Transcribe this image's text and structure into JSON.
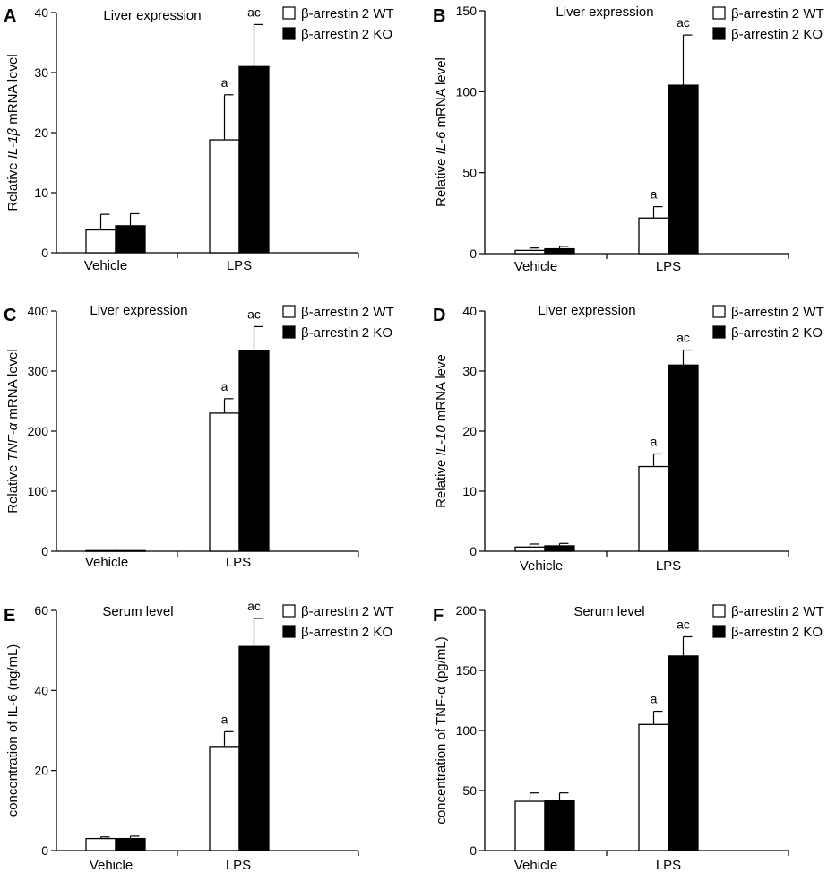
{
  "legend": {
    "wt": "β-arrestin 2 WT",
    "ko": "β-arrestin 2 KO"
  },
  "colors": {
    "wt_fill": "#ffffff",
    "ko_fill": "#000000",
    "axis": "#000000"
  },
  "chart_data": [
    {
      "panel": "A",
      "type": "bar",
      "title": "Liver expression",
      "ylabel": {
        "pre": "Relative ",
        "italic": "IL-1β",
        "post": " mRNA level"
      },
      "categories": [
        "Vehicle",
        "LPS"
      ],
      "ylim": [
        0,
        40
      ],
      "yticks": [
        0,
        10,
        20,
        30,
        40
      ],
      "series": [
        {
          "name": "β-arrestin 2 WT",
          "values": [
            3.8,
            18.8
          ],
          "errors": [
            2.6,
            7.5
          ],
          "labels": [
            "",
            "a"
          ]
        },
        {
          "name": "β-arrestin 2 KO",
          "values": [
            4.5,
            31.0
          ],
          "errors": [
            2.0,
            7.0
          ],
          "labels": [
            "",
            "ac"
          ]
        }
      ]
    },
    {
      "panel": "B",
      "type": "bar",
      "title": "Liver expression",
      "ylabel": {
        "pre": "Relative ",
        "italic": "IL-6",
        "post": " mRNA level"
      },
      "categories": [
        "Vehicle",
        "LPS"
      ],
      "ylim": [
        0,
        150
      ],
      "yticks": [
        0,
        50,
        100,
        150
      ],
      "series": [
        {
          "name": "β-arrestin 2 WT",
          "values": [
            2,
            22
          ],
          "errors": [
            1.5,
            7
          ],
          "labels": [
            "",
            "a"
          ]
        },
        {
          "name": "β-arrestin 2 KO",
          "values": [
            3,
            104
          ],
          "errors": [
            1.5,
            31
          ],
          "labels": [
            "",
            "ac"
          ]
        }
      ]
    },
    {
      "panel": "C",
      "type": "bar",
      "title": "Liver expression",
      "ylabel": {
        "pre": "Relative ",
        "italic": "TNF-α",
        "post": " mRNA level"
      },
      "categories": [
        "Vehicle",
        "LPS"
      ],
      "ylim": [
        0,
        400
      ],
      "yticks": [
        0,
        100,
        200,
        300,
        400
      ],
      "series": [
        {
          "name": "β-arrestin 2 WT",
          "values": [
            1,
            230
          ],
          "errors": [
            0,
            24
          ],
          "labels": [
            "",
            "a"
          ]
        },
        {
          "name": "β-arrestin 2 KO",
          "values": [
            1,
            334
          ],
          "errors": [
            0,
            40
          ],
          "labels": [
            "",
            "ac"
          ]
        }
      ]
    },
    {
      "panel": "D",
      "type": "bar",
      "title": "Liver expression",
      "ylabel": {
        "pre": "Relative ",
        "italic": "IL-10",
        "post": " mRNA leve"
      },
      "categories": [
        "Vehicle",
        "LPS"
      ],
      "ylim": [
        0,
        40
      ],
      "yticks": [
        0,
        10,
        20,
        30,
        40
      ],
      "series": [
        {
          "name": "β-arrestin 2 WT",
          "values": [
            0.7,
            14.1
          ],
          "errors": [
            0.5,
            2.1
          ],
          "labels": [
            "",
            "a"
          ]
        },
        {
          "name": "β-arrestin 2 KO",
          "values": [
            0.9,
            31.0
          ],
          "errors": [
            0.4,
            2.5
          ],
          "labels": [
            "",
            "ac"
          ]
        }
      ]
    },
    {
      "panel": "E",
      "type": "bar",
      "title": "Serum level",
      "ylabel": {
        "pre": "concentration of IL-6 (ng/mL)",
        "italic": "",
        "post": ""
      },
      "categories": [
        "Vehicle",
        "LPS"
      ],
      "ylim": [
        0,
        60
      ],
      "yticks": [
        0,
        20,
        40,
        60
      ],
      "series": [
        {
          "name": "β-arrestin 2 WT",
          "values": [
            3.0,
            26.0
          ],
          "errors": [
            0.4,
            3.7
          ],
          "labels": [
            "",
            "a"
          ]
        },
        {
          "name": "β-arrestin 2 KO",
          "values": [
            3.0,
            51.0
          ],
          "errors": [
            0.6,
            7.0
          ],
          "labels": [
            "",
            "ac"
          ]
        }
      ]
    },
    {
      "panel": "F",
      "type": "bar",
      "title": "Serum level",
      "ylabel": {
        "pre": "concentration of TNF-α (pg/mL)",
        "italic": "",
        "post": ""
      },
      "categories": [
        "Vehicle",
        "LPS"
      ],
      "ylim": [
        0,
        200
      ],
      "yticks": [
        0,
        50,
        100,
        150,
        200
      ],
      "series": [
        {
          "name": "β-arrestin 2 WT",
          "values": [
            41,
            105
          ],
          "errors": [
            7,
            11
          ],
          "labels": [
            "",
            "a"
          ]
        },
        {
          "name": "β-arrestin 2 KO",
          "values": [
            42,
            162
          ],
          "errors": [
            6,
            16
          ],
          "labels": [
            "",
            "ac"
          ]
        }
      ]
    }
  ]
}
